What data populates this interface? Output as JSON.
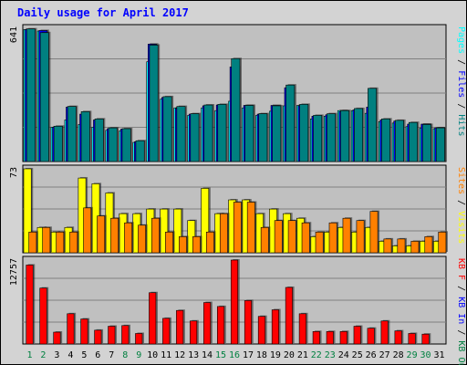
{
  "title": "Daily usage for April 2017",
  "colors": {
    "hits": "#00ffff",
    "files": "#0000ff",
    "pages": "#008080",
    "visits": "#ffff00",
    "sites": "#ff8000",
    "kbytes": "#ff0000",
    "background": "#c0c0c0",
    "weekend_day": "#008040",
    "weekday": "#000000"
  },
  "chart_data": [
    {
      "type": "bar",
      "name": "hits-files-pages",
      "categories": [
        "1",
        "2",
        "3",
        "4",
        "5",
        "6",
        "7",
        "8",
        "9",
        "10",
        "11",
        "12",
        "13",
        "14",
        "15",
        "16",
        "17",
        "18",
        "19",
        "20",
        "21",
        "22",
        "23",
        "24",
        "25",
        "26",
        "27",
        "28",
        "29",
        "30",
        "31"
      ],
      "ymax_label": "641",
      "ylim": [
        0,
        641
      ],
      "legend": [
        "Pages",
        "Files",
        "Hits"
      ],
      "series": [
        {
          "name": "Hits",
          "color": "#00ffff",
          "values": [
            635,
            628,
            165,
            200,
            178,
            165,
            150,
            148,
            92,
            480,
            300,
            258,
            222,
            258,
            245,
            290,
            258,
            222,
            242,
            268,
            270,
            205,
            218,
            245,
            245,
            232,
            192,
            185,
            168,
            160,
            158
          ]
        },
        {
          "name": "Files",
          "color": "#0000ff",
          "values": [
            635,
            630,
            165,
            262,
            228,
            200,
            158,
            156,
            95,
            565,
            308,
            255,
            228,
            268,
            272,
            455,
            270,
            228,
            270,
            355,
            268,
            218,
            225,
            240,
            248,
            262,
            200,
            195,
            180,
            180,
            162
          ]
        },
        {
          "name": "Pages",
          "color": "#008080",
          "values": [
            638,
            620,
            170,
            265,
            240,
            205,
            162,
            158,
            100,
            560,
            312,
            265,
            230,
            272,
            275,
            495,
            270,
            230,
            268,
            368,
            275,
            222,
            230,
            245,
            255,
            352,
            205,
            198,
            188,
            178,
            162
          ]
        }
      ]
    },
    {
      "type": "bar",
      "name": "visits-sites",
      "categories": [
        "1",
        "2",
        "3",
        "4",
        "5",
        "6",
        "7",
        "8",
        "9",
        "10",
        "11",
        "12",
        "13",
        "14",
        "15",
        "16",
        "17",
        "18",
        "19",
        "20",
        "21",
        "22",
        "23",
        "24",
        "25",
        "26",
        "27",
        "28",
        "29",
        "30",
        "31"
      ],
      "ymax_label": "73",
      "ylim": [
        0,
        73
      ],
      "legend": [
        "Visits",
        "Sites"
      ],
      "series": [
        {
          "name": "Visits",
          "color": "#ffff00",
          "values": [
            73,
            22,
            18,
            22,
            65,
            60,
            52,
            34,
            34,
            38,
            38,
            38,
            28,
            56,
            34,
            46,
            46,
            34,
            38,
            34,
            30,
            14,
            18,
            22,
            18,
            22,
            10,
            6,
            6,
            10,
            10
          ]
        },
        {
          "name": "Sites",
          "color": "#ff8000",
          "values": [
            18,
            22,
            18,
            18,
            39,
            32,
            30,
            26,
            24,
            30,
            18,
            14,
            14,
            18,
            34,
            44,
            44,
            22,
            28,
            28,
            26,
            18,
            26,
            30,
            28,
            36,
            12,
            12,
            10,
            14,
            18
          ]
        }
      ]
    },
    {
      "type": "bar",
      "name": "kbytes",
      "categories": [
        "1",
        "2",
        "3",
        "4",
        "5",
        "6",
        "7",
        "8",
        "9",
        "10",
        "11",
        "12",
        "13",
        "14",
        "15",
        "16",
        "17",
        "18",
        "19",
        "20",
        "21",
        "22",
        "23",
        "24",
        "25",
        "26",
        "27",
        "28",
        "29",
        "30",
        "31"
      ],
      "ymax_label": "12757",
      "ylim": [
        0,
        12757
      ],
      "legend": [
        "KB F",
        "KB In",
        "KB Out"
      ],
      "series": [
        {
          "name": "KB F",
          "color": "#ff0000",
          "values": [
            12000,
            8500,
            1800,
            4600,
            3800,
            2100,
            2700,
            2800,
            1600,
            7800,
            3900,
            5100,
            3500,
            6300,
            5700,
            12757,
            6600,
            4200,
            5200,
            8600,
            4600,
            1900,
            1900,
            1900,
            2700,
            2400,
            3500,
            2000,
            1600,
            1500,
            0
          ]
        }
      ]
    }
  ],
  "right_labels": {
    "top": [
      {
        "text": "Pages",
        "color": "#00ffff"
      },
      {
        "text": "/",
        "color": "#000000"
      },
      {
        "text": "Files",
        "color": "#0000ff"
      },
      {
        "text": "/",
        "color": "#000000"
      },
      {
        "text": "Hits",
        "color": "#008080"
      }
    ],
    "middle": [
      {
        "text": "Sites",
        "color": "#ff8000"
      },
      {
        "text": "/",
        "color": "#000000"
      },
      {
        "text": "Visits",
        "color": "#ffff00"
      }
    ],
    "bottom": [
      {
        "text": "KB F",
        "color": "#ff0000"
      },
      {
        "text": "/",
        "color": "#000000"
      },
      {
        "text": "KB In",
        "color": "#0000ff"
      },
      {
        "text": "/",
        "color": "#000000"
      },
      {
        "text": "KB Out",
        "color": "#008040"
      }
    ]
  },
  "weekend_days": [
    "1",
    "2",
    "8",
    "9",
    "15",
    "16",
    "22",
    "23",
    "29",
    "30"
  ]
}
